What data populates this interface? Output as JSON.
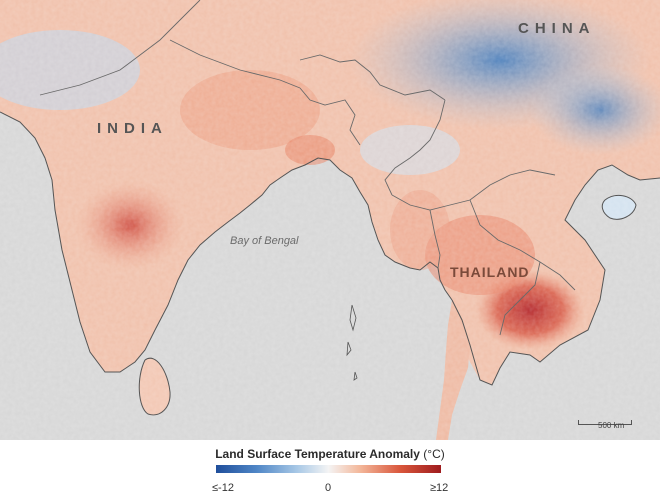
{
  "map": {
    "labels": {
      "india": "INDIA",
      "china": "CHINA",
      "thailand": "THAILAND",
      "bay": "Bay of Bengal"
    },
    "scale_bar": "500 km"
  },
  "legend": {
    "title": "Land Surface Temperature Anomaly",
    "unit": "(°C)",
    "min_label": "≤-12",
    "mid_label": "0",
    "max_label": "≥12",
    "colors": {
      "cold": "#1f4e9b",
      "neutral": "#f4f4f4",
      "hot": "#9e1b1e"
    }
  },
  "colors": {
    "ocean": "#d6d6d6",
    "border": "#6a6a6a"
  }
}
